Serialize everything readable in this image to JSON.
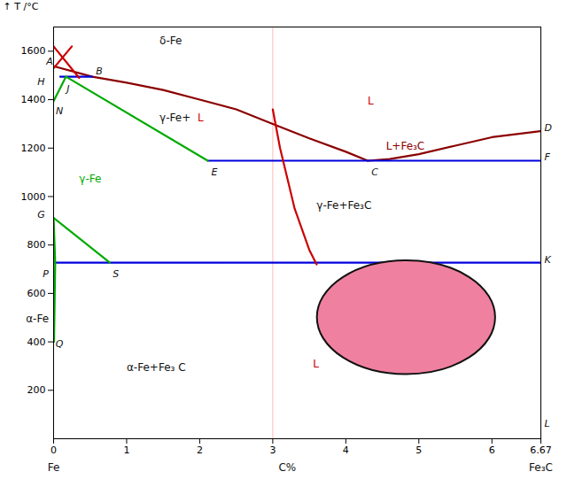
{
  "chart_data": {
    "type": "line",
    "ylabel": "T /°C",
    "xlim": [
      0,
      6.67
    ],
    "ylim": [
      0,
      1700
    ],
    "xticks": [
      0,
      1,
      2,
      3,
      4,
      5,
      6,
      6.67
    ],
    "yticks": [
      200,
      400,
      600,
      800,
      1000,
      1200,
      1400,
      1600
    ],
    "series": [
      {
        "x": [
          0,
          0.53,
          1.0,
          1.5,
          2.0,
          2.5,
          3.0,
          3.5,
          4.0,
          4.3
        ],
        "values": [
          1538,
          1495,
          1470,
          1440,
          1400,
          1360,
          1300,
          1240,
          1185,
          1148
        ],
        "color": "#8b0000"
      },
      {
        "x": [
          4.3,
          4.6,
          5.0,
          5.5,
          6.0,
          6.67
        ],
        "values": [
          1148,
          1155,
          1175,
          1210,
          1245,
          1270
        ],
        "color": "#8b0000"
      },
      {
        "x": [
          0.09,
          0.53
        ],
        "values": [
          1495,
          1495
        ],
        "color": "#0000dd"
      },
      {
        "x": [
          2.11,
          6.67
        ],
        "values": [
          1148,
          1148
        ],
        "color": "#0000dd"
      },
      {
        "x": [
          0.022,
          6.67
        ],
        "values": [
          727,
          727
        ],
        "color": "#0000dd"
      },
      {
        "x": [
          0,
          0.17
        ],
        "values": [
          1394,
          1495
        ],
        "color": "#00aa00"
      },
      {
        "x": [
          0.17,
          2.11
        ],
        "values": [
          1495,
          1148
        ],
        "color": "#00aa00"
      },
      {
        "x": [
          0,
          0.77
        ],
        "values": [
          912,
          727
        ],
        "color": "#00aa00"
      },
      {
        "x": [
          0,
          0.022
        ],
        "values": [
          912,
          727
        ],
        "color": "#00aa00"
      },
      {
        "x": [
          0.022,
          0.006
        ],
        "values": [
          727,
          400
        ],
        "color": "#00aa00"
      },
      {
        "x": [
          0.0,
          0.25
        ],
        "values": [
          1530,
          1620
        ],
        "color": "#cc0000"
      },
      {
        "x": [
          0.0,
          0.35
        ],
        "values": [
          1620,
          1490
        ],
        "color": "#cc0000"
      },
      {
        "x": [
          3.0,
          3.1,
          3.3,
          3.5,
          3.6
        ],
        "values": [
          1360,
          1200,
          950,
          780,
          720
        ],
        "color": "#cc0000"
      }
    ],
    "rules": [
      {
        "x": 3.0,
        "color": "#ffb8b8"
      }
    ],
    "ellipse": {
      "cx": 4.83,
      "cy": 500,
      "rx": 1.22,
      "ry": 235,
      "color": "#f080a0",
      "stroke": "#111111"
    },
    "point_labels": [
      {
        "text": "A",
        "x": -0.1,
        "y": 1545,
        "color": "#111111"
      },
      {
        "text": "B",
        "x": 0.58,
        "y": 1505,
        "color": "#111111"
      },
      {
        "text": "C",
        "x": 4.35,
        "y": 1088,
        "color": "#111111"
      },
      {
        "text": "E",
        "x": 2.16,
        "y": 1088,
        "color": "#111111"
      },
      {
        "text": "G",
        "x": -0.22,
        "y": 912,
        "color": "#111111"
      },
      {
        "text": "H",
        "x": -0.22,
        "y": 1460,
        "color": "#111111"
      },
      {
        "text": "J",
        "x": 0.18,
        "y": 1430,
        "color": "#111111"
      },
      {
        "text": "N",
        "x": 0.03,
        "y": 1340,
        "color": "#111111"
      },
      {
        "text": "P",
        "x": -0.148,
        "y": 667,
        "color": "#111111"
      },
      {
        "text": "Q",
        "x": 0.026,
        "y": 380,
        "color": "#111111"
      },
      {
        "text": "S",
        "x": 0.81,
        "y": 667,
        "color": "#111111"
      },
      {
        "text": "D",
        "x": 6.72,
        "y": 1270,
        "color": "#111111"
      },
      {
        "text": "F",
        "x": 6.72,
        "y": 1148,
        "color": "#111111"
      },
      {
        "text": "K",
        "x": 6.72,
        "y": 727,
        "color": "#111111"
      },
      {
        "text": "L",
        "x": 6.72,
        "y": 50,
        "color": "#111111"
      }
    ],
    "annotations": [
      {
        "text": "δ-Fe",
        "x": 1.45,
        "y": 1630,
        "color": "#111111"
      },
      {
        "text": "L",
        "x": 4.3,
        "y": 1380,
        "color": "#cc0000"
      },
      {
        "text": "γ-Fe+",
        "x": 1.45,
        "y": 1310,
        "color": "#111111"
      },
      {
        "text": "L",
        "x": 1.97,
        "y": 1310,
        "color": "#cc0000"
      },
      {
        "text": "γ-Fe",
        "x": 0.35,
        "y": 1060,
        "color": "#00aa00"
      },
      {
        "text": "γ-Fe+Fe₃C",
        "x": 3.6,
        "y": 950,
        "color": "#111111"
      },
      {
        "text": "α-Fe+Fe₃ C",
        "x": 1.0,
        "y": 280,
        "color": "#111111"
      },
      {
        "text": "L+Fe₃C",
        "x": 4.55,
        "y": 1195,
        "color": "#8b0000"
      },
      {
        "text": "α-Fe",
        "x": -0.38,
        "y": 480,
        "color": "#111111"
      },
      {
        "text": "L",
        "x": 3.55,
        "y": 295,
        "color": "#cc0000"
      }
    ],
    "bottom_labels": [
      {
        "text": "Fe",
        "x": 0.0
      },
      {
        "text": "C%",
        "x": 3.2
      },
      {
        "text": "Fe₃C",
        "x": 6.67
      }
    ]
  }
}
